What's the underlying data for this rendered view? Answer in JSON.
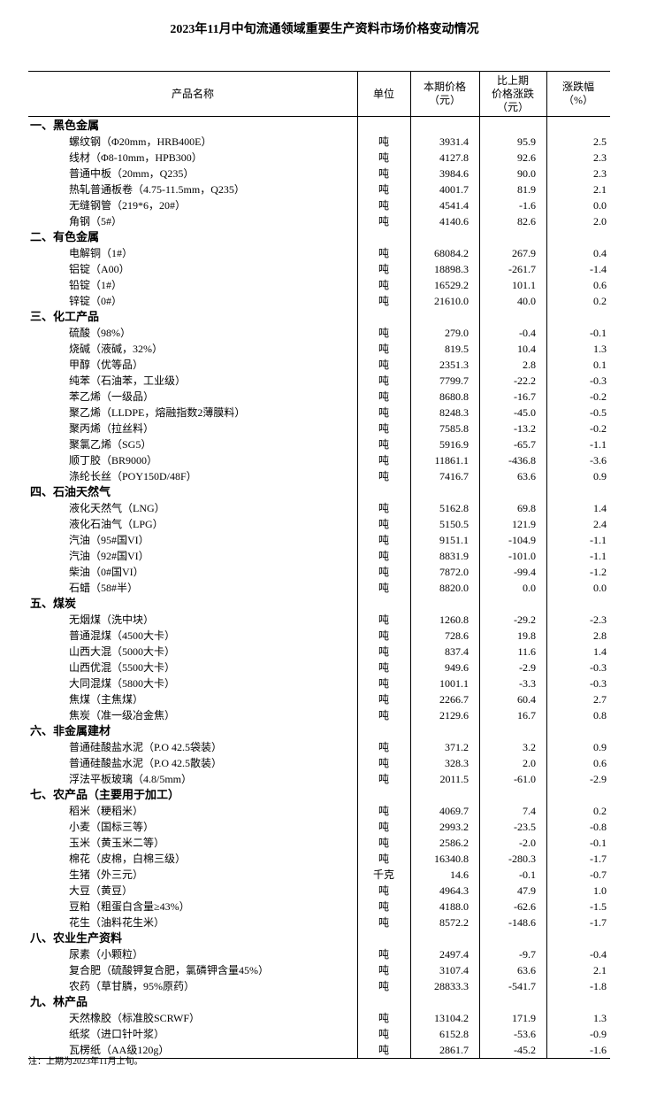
{
  "title": "2023年11月中旬流通领域重要生产资料市场价格变动情况",
  "headers": {
    "name": "产品名称",
    "unit": "单位",
    "price": [
      "本期价格",
      "（元）"
    ],
    "change": [
      "比上期",
      "价格涨跌",
      "（元）"
    ],
    "pct": [
      "涨跌幅",
      "（%）"
    ]
  },
  "sections": [
    {
      "title": "一、黑色金属",
      "items": [
        [
          "螺纹钢（Φ20mm，HRB400E）",
          "吨",
          "3931.4",
          "95.9",
          "2.5"
        ],
        [
          "线材（Φ8-10mm，HPB300）",
          "吨",
          "4127.8",
          "92.6",
          "2.3"
        ],
        [
          "普通中板（20mm，Q235）",
          "吨",
          "3984.6",
          "90.0",
          "2.3"
        ],
        [
          "热轧普通板卷（4.75-11.5mm，Q235）",
          "吨",
          "4001.7",
          "81.9",
          "2.1"
        ],
        [
          "无缝钢管（219*6，20#）",
          "吨",
          "4541.4",
          "-1.6",
          "0.0"
        ],
        [
          "角钢（5#）",
          "吨",
          "4140.6",
          "82.6",
          "2.0"
        ]
      ]
    },
    {
      "title": "二、有色金属",
      "items": [
        [
          "电解铜（1#）",
          "吨",
          "68084.2",
          "267.9",
          "0.4"
        ],
        [
          "铝锭（A00）",
          "吨",
          "18898.3",
          "-261.7",
          "-1.4"
        ],
        [
          "铅锭（1#）",
          "吨",
          "16529.2",
          "101.1",
          "0.6"
        ],
        [
          "锌锭（0#）",
          "吨",
          "21610.0",
          "40.0",
          "0.2"
        ]
      ]
    },
    {
      "title": "三、化工产品",
      "items": [
        [
          "硫酸（98%）",
          "吨",
          "279.0",
          "-0.4",
          "-0.1"
        ],
        [
          "烧碱（液碱，32%）",
          "吨",
          "819.5",
          "10.4",
          "1.3"
        ],
        [
          "甲醇（优等品）",
          "吨",
          "2351.3",
          "2.8",
          "0.1"
        ],
        [
          "纯苯（石油苯，工业级）",
          "吨",
          "7799.7",
          "-22.2",
          "-0.3"
        ],
        [
          "苯乙烯（一级品）",
          "吨",
          "8680.8",
          "-16.7",
          "-0.2"
        ],
        [
          "聚乙烯（LLDPE，熔融指数2薄膜料）",
          "吨",
          "8248.3",
          "-45.0",
          "-0.5"
        ],
        [
          "聚丙烯（拉丝料）",
          "吨",
          "7585.8",
          "-13.2",
          "-0.2"
        ],
        [
          "聚氯乙烯（SG5）",
          "吨",
          "5916.9",
          "-65.7",
          "-1.1"
        ],
        [
          "顺丁胶（BR9000）",
          "吨",
          "11861.1",
          "-436.8",
          "-3.6"
        ],
        [
          "涤纶长丝（POY150D/48F）",
          "吨",
          "7416.7",
          "63.6",
          "0.9"
        ]
      ]
    },
    {
      "title": "四、石油天然气",
      "items": [
        [
          "液化天然气（LNG）",
          "吨",
          "5162.8",
          "69.8",
          "1.4"
        ],
        [
          "液化石油气（LPG）",
          "吨",
          "5150.5",
          "121.9",
          "2.4"
        ],
        [
          "汽油（95#国VI）",
          "吨",
          "9151.1",
          "-104.9",
          "-1.1"
        ],
        [
          "汽油（92#国VI）",
          "吨",
          "8831.9",
          "-101.0",
          "-1.1"
        ],
        [
          "柴油（0#国VI）",
          "吨",
          "7872.0",
          "-99.4",
          "-1.2"
        ],
        [
          "石蜡（58#半）",
          "吨",
          "8820.0",
          "0.0",
          "0.0"
        ]
      ]
    },
    {
      "title": "五、煤炭",
      "items": [
        [
          "无烟煤（洗中块）",
          "吨",
          "1260.8",
          "-29.2",
          "-2.3"
        ],
        [
          "普通混煤（4500大卡）",
          "吨",
          "728.6",
          "19.8",
          "2.8"
        ],
        [
          "山西大混（5000大卡）",
          "吨",
          "837.4",
          "11.6",
          "1.4"
        ],
        [
          "山西优混（5500大卡）",
          "吨",
          "949.6",
          "-2.9",
          "-0.3"
        ],
        [
          "大同混煤（5800大卡）",
          "吨",
          "1001.1",
          "-3.3",
          "-0.3"
        ],
        [
          "焦煤（主焦煤）",
          "吨",
          "2266.7",
          "60.4",
          "2.7"
        ],
        [
          "焦炭（准一级冶金焦）",
          "吨",
          "2129.6",
          "16.7",
          "0.8"
        ]
      ]
    },
    {
      "title": "六、非金属建材",
      "items": [
        [
          "普通硅酸盐水泥（P.O 42.5袋装）",
          "吨",
          "371.2",
          "3.2",
          "0.9"
        ],
        [
          "普通硅酸盐水泥（P.O 42.5散装）",
          "吨",
          "328.3",
          "2.0",
          "0.6"
        ],
        [
          "浮法平板玻璃（4.8/5mm）",
          "吨",
          "2011.5",
          "-61.0",
          "-2.9"
        ]
      ]
    },
    {
      "title": "七、农产品（主要用于加工）",
      "items": [
        [
          "稻米（粳稻米）",
          "吨",
          "4069.7",
          "7.4",
          "0.2"
        ],
        [
          "小麦（国标三等）",
          "吨",
          "2993.2",
          "-23.5",
          "-0.8"
        ],
        [
          "玉米（黄玉米二等）",
          "吨",
          "2586.2",
          "-2.0",
          "-0.1"
        ],
        [
          "棉花（皮棉，白棉三级）",
          "吨",
          "16340.8",
          "-280.3",
          "-1.7"
        ],
        [
          "生猪（外三元）",
          "千克",
          "14.6",
          "-0.1",
          "-0.7"
        ],
        [
          "大豆（黄豆）",
          "吨",
          "4964.3",
          "47.9",
          "1.0"
        ],
        [
          "豆粕（粗蛋白含量≥43%）",
          "吨",
          "4188.0",
          "-62.6",
          "-1.5"
        ],
        [
          "花生（油料花生米）",
          "吨",
          "8572.2",
          "-148.6",
          "-1.7"
        ]
      ]
    },
    {
      "title": "八、农业生产资料",
      "items": [
        [
          "尿素（小颗粒）",
          "吨",
          "2497.4",
          "-9.7",
          "-0.4"
        ],
        [
          "复合肥（硫酸钾复合肥，氯磷钾含量45%）",
          "吨",
          "3107.4",
          "63.6",
          "2.1"
        ],
        [
          "农药（草甘膦，95%原药）",
          "吨",
          "28833.3",
          "-541.7",
          "-1.8"
        ]
      ]
    },
    {
      "title": "九、林产品",
      "items": [
        [
          "天然橡胶（标准胶SCRWF）",
          "吨",
          "13104.2",
          "171.9",
          "1.3"
        ],
        [
          "纸浆（进口针叶浆）",
          "吨",
          "6152.8",
          "-53.6",
          "-0.9"
        ],
        [
          "瓦楞纸（AA级120g）",
          "吨",
          "2861.7",
          "-45.2",
          "-1.6"
        ]
      ]
    }
  ],
  "note": "注：上期为2023年11月上旬。"
}
